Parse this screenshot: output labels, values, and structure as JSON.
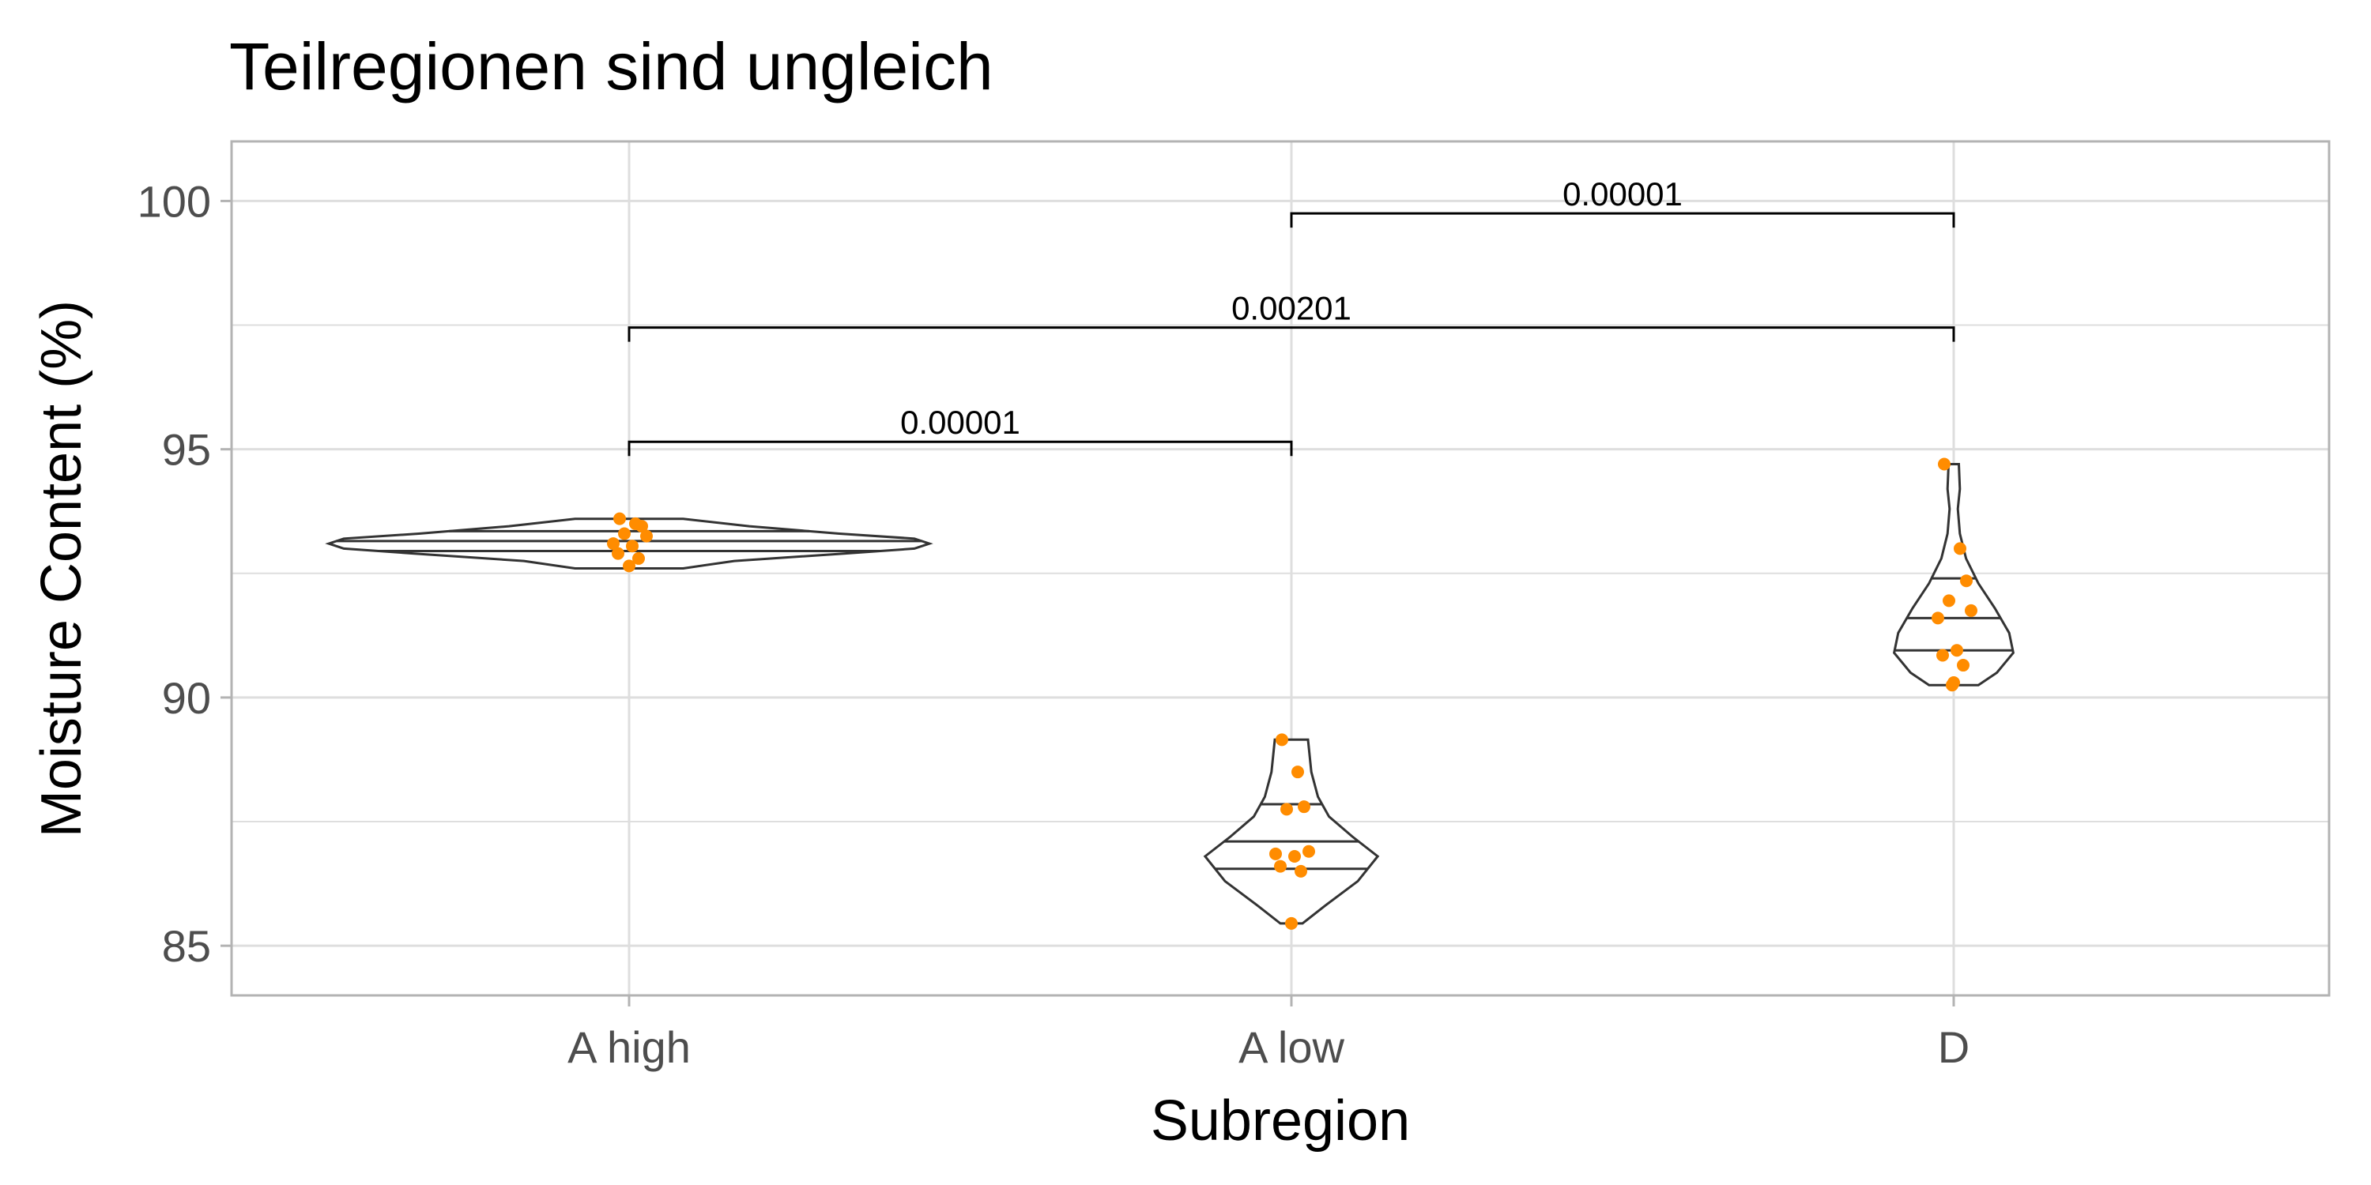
{
  "chart_data": {
    "type": "violin",
    "title": "Teilregionen sind ungleich",
    "xlabel": "Subregion",
    "ylabel": "Moisture Content (%)",
    "ylim": [
      84.0,
      101.2
    ],
    "yticks": [
      85,
      90,
      95,
      100
    ],
    "yticks_labels": [
      "85",
      "90",
      "95",
      "100"
    ],
    "minor_grid": [
      87.5,
      92.5,
      97.5
    ],
    "grid": true,
    "categories": [
      "A high",
      "A low",
      "D"
    ],
    "colors": {
      "points": "#ff8c00",
      "violin_line": "#333333",
      "grid": "#dedede",
      "panel_border": "#b3b3b3",
      "bracket": "#000000"
    },
    "violins": [
      {
        "category": "A high",
        "min": 92.6,
        "max": 93.6,
        "quantiles": [
          92.95,
          93.15,
          93.35
        ],
        "profile": [
          [
            92.6,
            0.18
          ],
          [
            92.75,
            0.35
          ],
          [
            92.9,
            0.72
          ],
          [
            93.0,
            0.95
          ],
          [
            93.1,
            1.0
          ],
          [
            93.2,
            0.95
          ],
          [
            93.3,
            0.7
          ],
          [
            93.45,
            0.4
          ],
          [
            93.6,
            0.18
          ]
        ]
      },
      {
        "category": "A low",
        "min": 85.45,
        "max": 89.15,
        "quantiles": [
          86.55,
          87.1,
          87.85
        ],
        "profile": [
          [
            85.45,
            0.1
          ],
          [
            85.8,
            0.3
          ],
          [
            86.3,
            0.6
          ],
          [
            86.8,
            0.78
          ],
          [
            87.2,
            0.55
          ],
          [
            87.6,
            0.34
          ],
          [
            88.0,
            0.24
          ],
          [
            88.5,
            0.18
          ],
          [
            89.15,
            0.15
          ]
        ]
      },
      {
        "category": "D",
        "min": 90.25,
        "max": 94.7,
        "quantiles": [
          90.95,
          91.6,
          92.4
        ],
        "profile": [
          [
            90.25,
            0.24
          ],
          [
            90.5,
            0.42
          ],
          [
            90.9,
            0.58
          ],
          [
            91.3,
            0.54
          ],
          [
            91.8,
            0.4
          ],
          [
            92.3,
            0.24
          ],
          [
            92.8,
            0.12
          ],
          [
            93.3,
            0.06
          ],
          [
            93.8,
            0.04
          ],
          [
            94.2,
            0.06
          ],
          [
            94.7,
            0.05
          ]
        ]
      }
    ],
    "points": [
      {
        "category": "A high",
        "values": [
          93.6,
          93.5,
          93.45,
          93.3,
          93.25,
          93.1,
          93.05,
          92.9,
          92.8,
          92.65
        ]
      },
      {
        "category": "A low",
        "values": [
          89.15,
          88.5,
          87.8,
          87.75,
          86.9,
          86.85,
          86.8,
          86.6,
          86.5,
          85.45
        ]
      },
      {
        "category": "D",
        "values": [
          94.7,
          93.0,
          92.35,
          91.95,
          91.75,
          91.6,
          90.95,
          90.85,
          90.65,
          90.3,
          90.25
        ]
      }
    ],
    "comparisons": [
      {
        "from": "A high",
        "to": "A low",
        "y": 95.15,
        "label": "0.00001"
      },
      {
        "from": "A high",
        "to": "D",
        "y": 97.45,
        "label": "0.00201"
      },
      {
        "from": "A low",
        "to": "D",
        "y": 99.75,
        "label": "0.00001"
      }
    ]
  }
}
